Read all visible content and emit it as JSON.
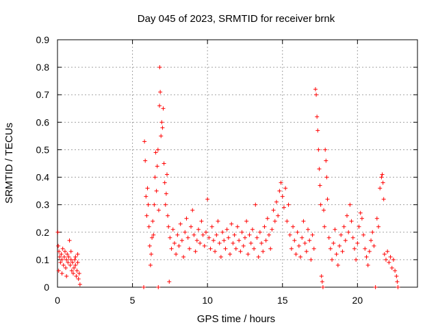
{
  "chart_data": {
    "type": "scatter",
    "title": "Day 045 of 2023, SRMTID for receiver brnk",
    "xlabel": "GPS time / hours",
    "ylabel": "SRMTID / TECUs",
    "xlim": [
      0,
      24
    ],
    "ylim": [
      0,
      0.9
    ],
    "xticks": [
      0,
      5,
      10,
      15,
      20
    ],
    "xtick_labels": [
      "0",
      "5",
      "10",
      "15",
      "20"
    ],
    "yticks": [
      0,
      0.1,
      0.2,
      0.3,
      0.4,
      0.5,
      0.6,
      0.7,
      0.8,
      0.9
    ],
    "ytick_labels": [
      "0",
      "0.1",
      "0.2",
      "0.3",
      "0.4",
      "0.5",
      "0.6",
      "0.7",
      "0.8",
      "0.9"
    ],
    "grid": true,
    "marker": "plus",
    "series_color": "#ff0000",
    "series": [
      {
        "name": "SRMTID",
        "points": [
          [
            0.02,
            0.2
          ],
          [
            0.05,
            0.15
          ],
          [
            0.1,
            0.13
          ],
          [
            0.15,
            0.11
          ],
          [
            0.2,
            0.09
          ],
          [
            0.25,
            0.12
          ],
          [
            0.3,
            0.1
          ],
          [
            0.35,
            0.14
          ],
          [
            0.4,
            0.08
          ],
          [
            0.45,
            0.11
          ],
          [
            0.5,
            0.13
          ],
          [
            0.55,
            0.07
          ],
          [
            0.6,
            0.1
          ],
          [
            0.65,
            0.12
          ],
          [
            0.7,
            0.09
          ],
          [
            0.75,
            0.11
          ],
          [
            0.8,
            0.17
          ],
          [
            0.85,
            0.08
          ],
          [
            0.9,
            0.1
          ],
          [
            0.95,
            0.06
          ],
          [
            1.0,
            0.09
          ],
          [
            1.05,
            0.05
          ],
          [
            1.1,
            0.07
          ],
          [
            1.15,
            0.1
          ],
          [
            1.2,
            0.08
          ],
          [
            1.25,
            0.04
          ],
          [
            1.3,
            0.06
          ],
          [
            1.35,
            0.09
          ],
          [
            1.4,
            0.03
          ],
          [
            1.45,
            0.05
          ],
          [
            1.5,
            0.01
          ],
          [
            0.08,
            0.06
          ],
          [
            0.3,
            0.05
          ],
          [
            0.6,
            0.04
          ],
          [
            0.9,
            0.13
          ],
          [
            1.2,
            0.11
          ],
          [
            1.35,
            0.12
          ],
          [
            5.75,
            0.0
          ],
          [
            5.8,
            0.53
          ],
          [
            5.85,
            0.46
          ],
          [
            5.9,
            0.33
          ],
          [
            5.95,
            0.26
          ],
          [
            6.0,
            0.36
          ],
          [
            6.05,
            0.3
          ],
          [
            6.1,
            0.22
          ],
          [
            6.15,
            0.15
          ],
          [
            6.2,
            0.08
          ],
          [
            6.25,
            0.12
          ],
          [
            6.3,
            0.18
          ],
          [
            6.35,
            0.24
          ],
          [
            6.4,
            0.19
          ],
          [
            6.45,
            0.3
          ],
          [
            6.5,
            0.4
          ],
          [
            6.55,
            0.49
          ],
          [
            6.6,
            0.35
          ],
          [
            6.65,
            0.44
          ],
          [
            6.7,
            0.5
          ],
          [
            6.72,
            0.0
          ],
          [
            6.75,
            0.28
          ],
          [
            6.8,
            0.66
          ],
          [
            6.82,
            0.8
          ],
          [
            6.85,
            0.71
          ],
          [
            6.9,
            0.55
          ],
          [
            6.95,
            0.6
          ],
          [
            7.0,
            0.58
          ],
          [
            7.05,
            0.65
          ],
          [
            7.1,
            0.45
          ],
          [
            7.15,
            0.38
          ],
          [
            7.2,
            0.3
          ],
          [
            7.25,
            0.34
          ],
          [
            7.3,
            0.41
          ],
          [
            7.35,
            0.26
          ],
          [
            7.4,
            0.22
          ],
          [
            7.45,
            0.02
          ],
          [
            7.5,
            0.18
          ],
          [
            7.6,
            0.14
          ],
          [
            7.7,
            0.21
          ],
          [
            7.8,
            0.16
          ],
          [
            7.9,
            0.12
          ],
          [
            8.0,
            0.19
          ],
          [
            8.1,
            0.15
          ],
          [
            8.2,
            0.23
          ],
          [
            8.3,
            0.17
          ],
          [
            8.4,
            0.11
          ],
          [
            8.5,
            0.2
          ],
          [
            8.6,
            0.25
          ],
          [
            8.7,
            0.18
          ],
          [
            8.8,
            0.14
          ],
          [
            8.9,
            0.22
          ],
          [
            9.0,
            0.28
          ],
          [
            9.1,
            0.19
          ],
          [
            9.2,
            0.13
          ],
          [
            9.3,
            0.17
          ],
          [
            9.4,
            0.21
          ],
          [
            9.5,
            0.16
          ],
          [
            9.6,
            0.24
          ],
          [
            9.7,
            0.19
          ],
          [
            9.8,
            0.15
          ],
          [
            9.9,
            0.2
          ],
          [
            10.0,
            0.32
          ],
          [
            10.1,
            0.18
          ],
          [
            10.2,
            0.14
          ],
          [
            10.3,
            0.22
          ],
          [
            10.4,
            0.17
          ],
          [
            10.5,
            0.13
          ],
          [
            10.6,
            0.19
          ],
          [
            10.7,
            0.24
          ],
          [
            10.8,
            0.16
          ],
          [
            10.9,
            0.11
          ],
          [
            11.0,
            0.2
          ],
          [
            11.1,
            0.17
          ],
          [
            11.2,
            0.14
          ],
          [
            11.3,
            0.21
          ],
          [
            11.4,
            0.18
          ],
          [
            11.5,
            0.12
          ],
          [
            11.6,
            0.23
          ],
          [
            11.7,
            0.16
          ],
          [
            11.8,
            0.19
          ],
          [
            11.9,
            0.14
          ],
          [
            12.0,
            0.22
          ],
          [
            12.1,
            0.17
          ],
          [
            12.2,
            0.13
          ],
          [
            12.3,
            0.2
          ],
          [
            12.4,
            0.15
          ],
          [
            12.5,
            0.18
          ],
          [
            12.6,
            0.24
          ],
          [
            12.7,
            0.12
          ],
          [
            12.8,
            0.19
          ],
          [
            12.9,
            0.16
          ],
          [
            13.0,
            0.21
          ],
          [
            13.1,
            0.14
          ],
          [
            13.2,
            0.3
          ],
          [
            13.3,
            0.18
          ],
          [
            13.4,
            0.11
          ],
          [
            13.5,
            0.2
          ],
          [
            13.6,
            0.16
          ],
          [
            13.7,
            0.13
          ],
          [
            13.8,
            0.22
          ],
          [
            13.9,
            0.17
          ],
          [
            14.0,
            0.25
          ],
          [
            14.1,
            0.19
          ],
          [
            14.2,
            0.14
          ],
          [
            14.3,
            0.21
          ],
          [
            14.4,
            0.28
          ],
          [
            14.5,
            0.24
          ],
          [
            14.6,
            0.31
          ],
          [
            14.7,
            0.26
          ],
          [
            14.8,
            0.35
          ],
          [
            14.9,
            0.38
          ],
          [
            15.0,
            0.33
          ],
          [
            15.1,
            0.29
          ],
          [
            15.2,
            0.36
          ],
          [
            15.3,
            0.24
          ],
          [
            15.4,
            0.3
          ],
          [
            15.5,
            0.19
          ],
          [
            15.6,
            0.14
          ],
          [
            15.7,
            0.22
          ],
          [
            15.8,
            0.17
          ],
          [
            15.9,
            0.12
          ],
          [
            16.0,
            0.2
          ],
          [
            16.1,
            0.15
          ],
          [
            16.2,
            0.11
          ],
          [
            16.3,
            0.18
          ],
          [
            16.4,
            0.24
          ],
          [
            16.5,
            0.16
          ],
          [
            16.6,
            0.13
          ],
          [
            16.7,
            0.21
          ],
          [
            16.8,
            0.17
          ],
          [
            16.9,
            0.1
          ],
          [
            17.0,
            0.19
          ],
          [
            17.1,
            0.14
          ],
          [
            17.2,
            0.72
          ],
          [
            17.25,
            0.7
          ],
          [
            17.3,
            0.62
          ],
          [
            17.35,
            0.57
          ],
          [
            17.4,
            0.5
          ],
          [
            17.45,
            0.43
          ],
          [
            17.5,
            0.37
          ],
          [
            17.55,
            0.3
          ],
          [
            17.6,
            0.04
          ],
          [
            17.65,
            0.02
          ],
          [
            17.7,
            0.0
          ],
          [
            17.75,
            0.28
          ],
          [
            17.8,
            0.22
          ],
          [
            17.85,
            0.5
          ],
          [
            17.9,
            0.46
          ],
          [
            17.95,
            0.4
          ],
          [
            18.0,
            0.32
          ],
          [
            18.1,
            0.18
          ],
          [
            18.2,
            0.14
          ],
          [
            18.3,
            0.1
          ],
          [
            18.4,
            0.16
          ],
          [
            18.5,
            0.21
          ],
          [
            18.6,
            0.12
          ],
          [
            18.7,
            0.08
          ],
          [
            18.8,
            0.15
          ],
          [
            18.9,
            0.19
          ],
          [
            19.0,
            0.13
          ],
          [
            19.1,
            0.22
          ],
          [
            19.2,
            0.17
          ],
          [
            19.3,
            0.26
          ],
          [
            19.4,
            0.2
          ],
          [
            19.5,
            0.3
          ],
          [
            19.6,
            0.24
          ],
          [
            19.7,
            0.18
          ],
          [
            19.8,
            0.14
          ],
          [
            19.9,
            0.1
          ],
          [
            20.0,
            0.16
          ],
          [
            20.1,
            0.22
          ],
          [
            20.2,
            0.27
          ],
          [
            20.3,
            0.25
          ],
          [
            20.4,
            0.19
          ],
          [
            20.5,
            0.14
          ],
          [
            20.6,
            0.11
          ],
          [
            20.7,
            0.08
          ],
          [
            20.8,
            0.13
          ],
          [
            20.9,
            0.17
          ],
          [
            21.0,
            0.2
          ],
          [
            21.1,
            0.15
          ],
          [
            21.2,
            0.0
          ],
          [
            21.3,
            0.25
          ],
          [
            21.4,
            0.22
          ],
          [
            21.5,
            0.36
          ],
          [
            21.6,
            0.4
          ],
          [
            21.65,
            0.41
          ],
          [
            21.7,
            0.38
          ],
          [
            21.75,
            0.32
          ],
          [
            21.8,
            0.12
          ],
          [
            21.9,
            0.1
          ],
          [
            22.0,
            0.13
          ],
          [
            22.1,
            0.09
          ],
          [
            22.2,
            0.11
          ],
          [
            22.3,
            0.07
          ],
          [
            22.4,
            0.1
          ],
          [
            22.5,
            0.06
          ],
          [
            22.6,
            0.04
          ],
          [
            22.65,
            0.02
          ],
          [
            22.7,
            0.0
          ]
        ]
      }
    ]
  }
}
